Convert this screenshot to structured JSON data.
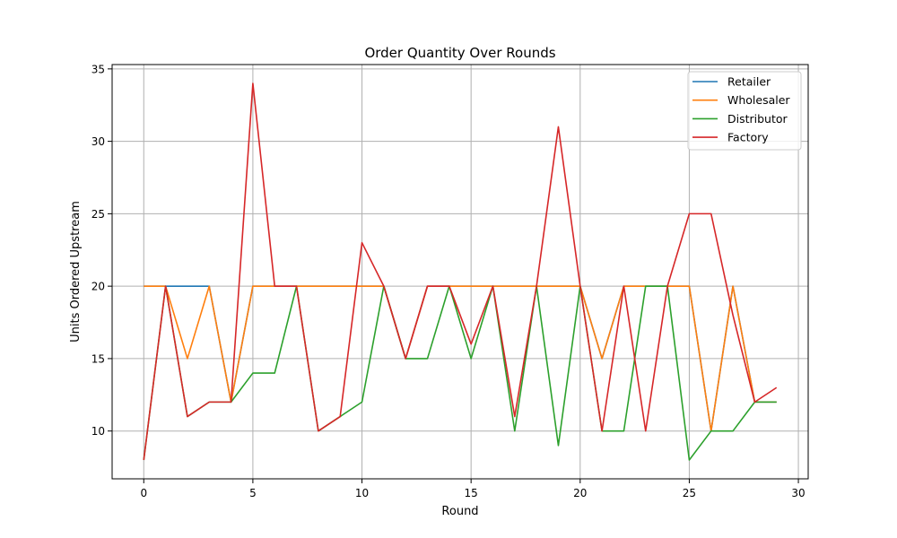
{
  "chart_data": {
    "type": "line",
    "title": "Order Quantity Over Rounds",
    "xlabel": "Round",
    "ylabel": "Units Ordered Upstream",
    "xlim": [
      -1.45,
      30.45
    ],
    "ylim": [
      6.7,
      35.3
    ],
    "xticks": [
      0,
      5,
      10,
      15,
      20,
      25,
      30
    ],
    "yticks": [
      10,
      15,
      20,
      25,
      30,
      35
    ],
    "grid": true,
    "legend_position": "top-right",
    "x": [
      0,
      1,
      2,
      3,
      4,
      5,
      6,
      7,
      8,
      9,
      10,
      11,
      12,
      13,
      14,
      15,
      16,
      17,
      18,
      19,
      20,
      21,
      22,
      23,
      24,
      25,
      26,
      27,
      28,
      29
    ],
    "series": [
      {
        "name": "Retailer",
        "color": "#1f77b4",
        "values": [
          20,
          20,
          20,
          20,
          12,
          20,
          20,
          20,
          20,
          20,
          20,
          20,
          15,
          20,
          20,
          20,
          20,
          20,
          20,
          20,
          20,
          15,
          20,
          20,
          20,
          20,
          10,
          20,
          12,
          12
        ]
      },
      {
        "name": "Wholesaler",
        "color": "#ff7f0e",
        "values": [
          20,
          20,
          15,
          20,
          12,
          20,
          20,
          20,
          20,
          20,
          20,
          20,
          15,
          20,
          20,
          20,
          20,
          20,
          20,
          20,
          20,
          15,
          20,
          20,
          20,
          20,
          10,
          20,
          12,
          12
        ]
      },
      {
        "name": "Distributor",
        "color": "#2ca02c",
        "values": [
          8,
          20,
          11,
          12,
          12,
          14,
          14,
          20,
          10,
          11,
          12,
          20,
          15,
          15,
          20,
          15,
          20,
          10,
          20,
          9,
          20,
          10,
          10,
          20,
          20,
          8,
          10,
          10,
          12,
          12
        ]
      },
      {
        "name": "Factory",
        "color": "#d62728",
        "values": [
          8,
          20,
          11,
          12,
          12,
          34,
          20,
          20,
          10,
          11,
          23,
          20,
          15,
          20,
          20,
          16,
          20,
          11,
          20,
          31,
          20,
          10,
          20,
          10,
          20,
          25,
          25,
          18,
          12,
          13
        ]
      }
    ]
  }
}
